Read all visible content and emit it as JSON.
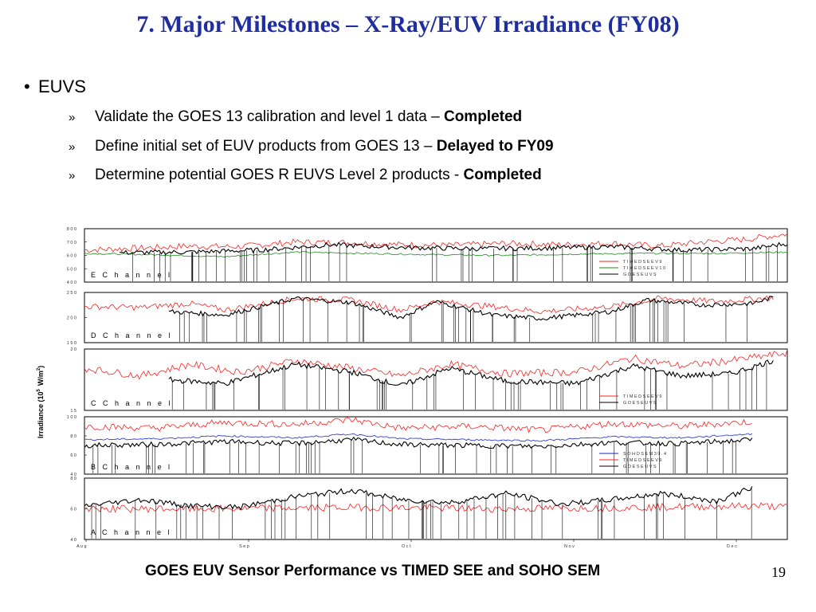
{
  "slide": {
    "title": "7. Major Milestones – X-Ray/EUV Irradiance (FY08)",
    "bullet": "EUVS",
    "subitems": [
      {
        "text": "Validate the GOES 13 calibration and level 1 data – ",
        "status": "Completed"
      },
      {
        "text": "Define initial set of EUV products from GOES 13 – ",
        "status": "Delayed to FY09"
      },
      {
        "text": "Determine potential GOES R EUVS Level 2 products - ",
        "status": "Completed"
      }
    ],
    "caption": "GOES EUV Sensor Performance vs TIMED SEE and SOHO SEM",
    "page_number": "19"
  },
  "colors": {
    "title": "#1f2e9e",
    "red": "#ff2020",
    "green": "#1a8c1a",
    "blue": "#1a2ad6",
    "black": "#000000"
  },
  "chart_data": {
    "type": "line",
    "ylabel": "Irradiance (10",
    "ylabel_exp": "5",
    "ylabel_unit": "W/m",
    "ylabel_unit_exp": "2",
    "x_ticks": [
      "Aug",
      "Sep",
      "Oct",
      "Nov",
      "Dec"
    ],
    "panels": [
      {
        "name": "E Channel",
        "y_ticks": [
          "800",
          "700",
          "600",
          "500",
          "400"
        ],
        "ylim": [
          400,
          800
        ],
        "legend": [
          "TIMED SEE V9",
          "TIMED SEE V10",
          "GOES EUVS"
        ],
        "series": [
          {
            "name": "TIMED SEE V9",
            "color": "#ff2020",
            "x": [
              0,
              0.08,
              0.15,
              0.22,
              0.3,
              0.38,
              0.45,
              0.52,
              0.6,
              0.68,
              0.75,
              0.82,
              0.88,
              0.94,
              1.0
            ],
            "values": [
              640,
              655,
              670,
              665,
              700,
              695,
              680,
              675,
              690,
              680,
              690,
              670,
              700,
              720,
              760
            ]
          },
          {
            "name": "TIMED SEE V10",
            "color": "#1a8c1a",
            "x": [
              0,
              0.1,
              0.2,
              0.3,
              0.4,
              0.5,
              0.6,
              0.7,
              0.8,
              0.9,
              1.0
            ],
            "values": [
              615,
              605,
              590,
              625,
              615,
              605,
              600,
              610,
              615,
              615,
              625
            ]
          },
          {
            "name": "GOES EUVS",
            "color": "#000000",
            "x": [
              0.05,
              0.15,
              0.25,
              0.35,
              0.45,
              0.55,
              0.65,
              0.75,
              0.85,
              0.95,
              1.0
            ],
            "values": [
              620,
              625,
              640,
              680,
              660,
              650,
              655,
              665,
              640,
              650,
              690
            ]
          }
        ]
      },
      {
        "name": "D Channel",
        "y_ticks": [
          "250",
          "200",
          "150"
        ],
        "ylim": [
          150,
          250
        ],
        "legend": [],
        "series": [
          {
            "name": "TIMED SEE",
            "color": "#ff2020",
            "x": [
              0,
              0.08,
              0.15,
              0.2,
              0.3,
              0.38,
              0.45,
              0.5,
              0.58,
              0.65,
              0.75,
              0.82,
              0.9,
              0.98
            ],
            "values": [
              222,
              220,
              228,
              215,
              238,
              235,
              215,
              232,
              222,
              212,
              222,
              238,
              232,
              240
            ]
          },
          {
            "name": "GOES EUVS",
            "color": "#000000",
            "x": [
              0.12,
              0.2,
              0.3,
              0.38,
              0.45,
              0.5,
              0.58,
              0.65,
              0.75,
              0.8,
              0.88,
              0.95,
              0.98
            ],
            "values": [
              212,
              205,
              238,
              230,
              200,
              232,
              205,
              198,
              212,
              235,
              225,
              228,
              240
            ]
          }
        ]
      },
      {
        "name": "C Channel",
        "y_ticks": [
          "20",
          "15"
        ],
        "ylim": [
          12,
          20
        ],
        "legend": [
          "TIMED SEE V9",
          "GOES EUVS"
        ],
        "series": [
          {
            "name": "TIMED SEE V9",
            "color": "#ff2020",
            "x": [
              0,
              0.08,
              0.15,
              0.22,
              0.3,
              0.38,
              0.45,
              0.52,
              0.6,
              0.7,
              0.78,
              0.85,
              0.92,
              1.0
            ],
            "values": [
              17.5,
              16.5,
              18,
              17,
              18.5,
              17.5,
              16.5,
              18,
              16.8,
              17,
              18.8,
              17.8,
              18.5,
              19.5
            ]
          },
          {
            "name": "GOES EUVS",
            "color": "#000000",
            "x": [
              0.12,
              0.2,
              0.3,
              0.38,
              0.45,
              0.52,
              0.6,
              0.7,
              0.78,
              0.85,
              0.92,
              0.98
            ],
            "values": [
              16,
              15.5,
              18,
              17,
              15.2,
              17.5,
              15.8,
              15.5,
              17.8,
              16.5,
              16.8,
              18.5
            ]
          }
        ]
      },
      {
        "name": "B Channel",
        "y_ticks": [
          "100",
          "80",
          "60",
          "40"
        ],
        "ylim": [
          40,
          100
        ],
        "legend": [
          "SOHO SEM 30.4",
          "TIMED SEE V9",
          "GOES EUVS"
        ],
        "series": [
          {
            "name": "TIMED SEE V9",
            "color": "#ff2020",
            "x": [
              0,
              0.1,
              0.2,
              0.3,
              0.38,
              0.45,
              0.55,
              0.65,
              0.75,
              0.85,
              0.95
            ],
            "values": [
              90,
              88,
              94,
              92,
              97,
              88,
              90,
              86,
              93,
              90,
              95
            ]
          },
          {
            "name": "SOHO SEM 30.4",
            "color": "#1a2ad6",
            "x": [
              0,
              0.1,
              0.2,
              0.3,
              0.38,
              0.45,
              0.55,
              0.65,
              0.75,
              0.85,
              0.95
            ],
            "values": [
              76,
              77,
              80,
              78,
              82,
              77,
              76,
              75,
              79,
              78,
              82
            ]
          },
          {
            "name": "GOES EUVS",
            "color": "#000000",
            "x": [
              0,
              0.1,
              0.2,
              0.3,
              0.38,
              0.45,
              0.55,
              0.65,
              0.75,
              0.85,
              0.95
            ],
            "values": [
              70,
              71,
              74,
              72,
              76,
              71,
              70,
              69,
              73,
              72,
              76
            ]
          }
        ]
      },
      {
        "name": "A Channel",
        "y_ticks": [
          "80",
          "60",
          "40"
        ],
        "ylim": [
          40,
          80
        ],
        "legend": [],
        "series": [
          {
            "name": "TIMED SEE",
            "color": "#ff2020",
            "x": [
              0,
              0.2,
              0.4,
              0.6,
              0.8,
              0.96,
              1.0
            ],
            "values": [
              60,
              60,
              61,
              60,
              61,
              62,
              61
            ]
          },
          {
            "name": "GOES EUVS",
            "color": "#000000",
            "x": [
              0,
              0.08,
              0.15,
              0.22,
              0.3,
              0.38,
              0.45,
              0.52,
              0.6,
              0.68,
              0.75,
              0.82,
              0.9,
              0.95
            ],
            "values": [
              62,
              66,
              62,
              61,
              68,
              72,
              66,
              64,
              70,
              63,
              66,
              70,
              65,
              74
            ]
          }
        ]
      }
    ]
  }
}
